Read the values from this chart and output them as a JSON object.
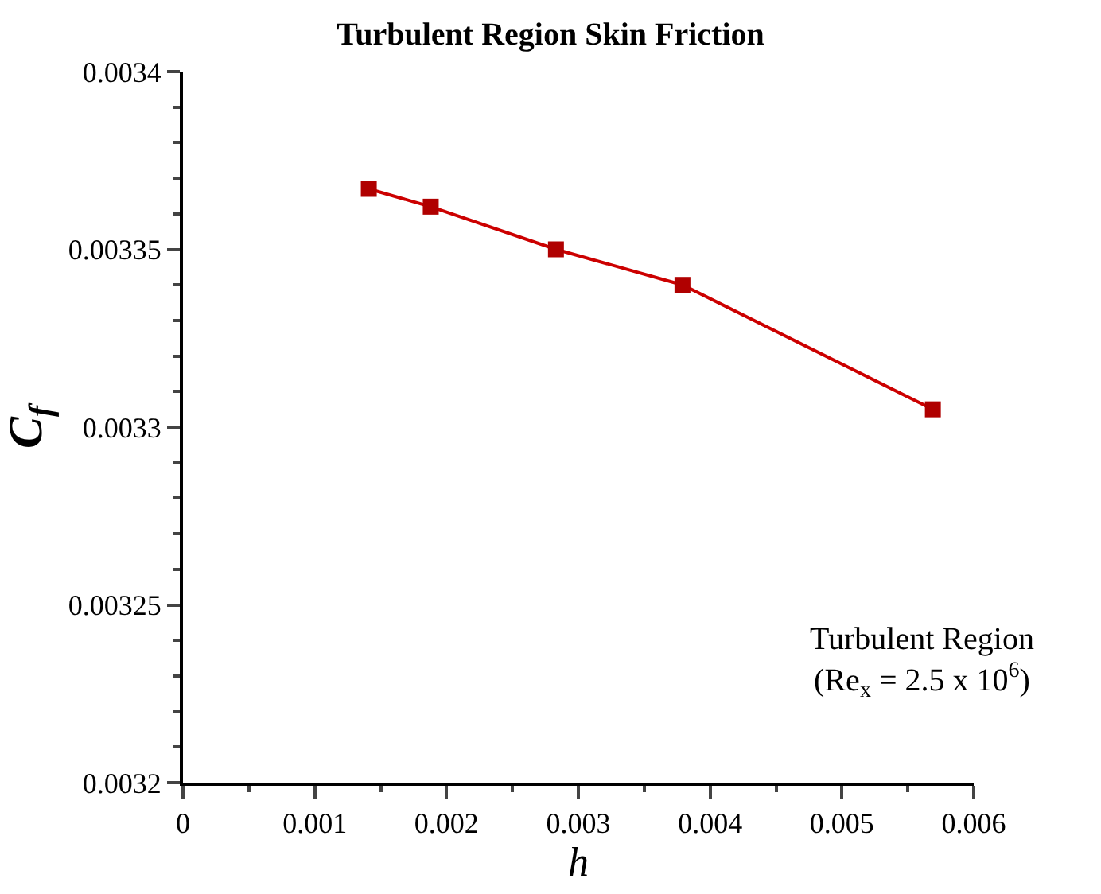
{
  "chart_data": {
    "type": "line",
    "title": "Turbulent Region Skin Friction",
    "xlabel": "h",
    "ylabel": "C$_{f}$",
    "x": [
      0.00141,
      0.00188,
      0.00283,
      0.00379,
      0.00569
    ],
    "series": [
      {
        "color": "#cc0000",
        "values": [
          0.003367,
          0.003362,
          0.00335,
          0.00334,
          0.003305
        ]
      }
    ],
    "xlim": [
      0,
      0.006
    ],
    "ylim": [
      0.0032,
      0.0034
    ],
    "xticks": [
      0,
      0.001,
      0.002,
      0.003,
      0.004,
      0.005,
      0.006
    ],
    "yticks": [
      0.0032,
      0.00325,
      0.0033,
      0.00335,
      0.0034
    ],
    "marker": "square",
    "line_style": "solid",
    "annotations": [
      "Turbulent Region\n(Re$_{x}$ = 2.5 x 10$^{6}$)"
    ]
  }
}
